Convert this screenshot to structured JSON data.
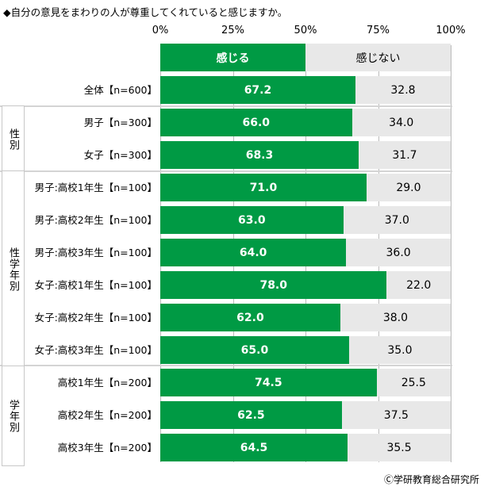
{
  "title": "◆自分の意見をまわりの人が尊重してくれていると感じますか。",
  "copyright": "Ⓒ学研教育総合研究所",
  "chart_data": {
    "type": "bar",
    "stacked": true,
    "orientation": "horizontal",
    "xlim": [
      0,
      100
    ],
    "ticks": [
      "0%",
      "25%",
      "50%",
      "75%",
      "100%"
    ],
    "legend": [
      "感じる",
      "感じない"
    ],
    "colors": [
      "#009a44",
      "#e8e8e8"
    ],
    "groups": [
      {
        "label": "性別",
        "rows": [
          1,
          2
        ]
      },
      {
        "label": "性学年別",
        "rows": [
          3,
          4,
          5,
          6,
          7,
          8
        ]
      },
      {
        "label": "学年別",
        "rows": [
          9,
          10,
          11
        ]
      }
    ],
    "categories": [
      "全体【n=600】",
      "男子【n=300】",
      "女子【n=300】",
      "男子:高校1年生【n=100】",
      "男子:高校2年生【n=100】",
      "男子:高校3年生【n=100】",
      "女子:高校1年生【n=100】",
      "女子:高校2年生【n=100】",
      "女子:高校3年生【n=100】",
      "高校1年生【n=200】",
      "高校2年生【n=200】",
      "高校3年生【n=200】"
    ],
    "series": [
      {
        "name": "感じる",
        "values": [
          "67.2",
          "66.0",
          "68.3",
          "71.0",
          "63.0",
          "64.0",
          "78.0",
          "62.0",
          "65.0",
          "74.5",
          "62.5",
          "64.5"
        ]
      },
      {
        "name": "感じない",
        "values": [
          "32.8",
          "34.0",
          "31.7",
          "29.0",
          "37.0",
          "36.0",
          "22.0",
          "38.0",
          "35.0",
          "25.5",
          "37.5",
          "35.5"
        ]
      }
    ]
  }
}
